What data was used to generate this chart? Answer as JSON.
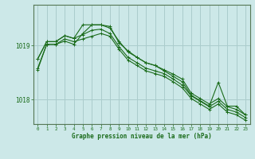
{
  "background_color": "#cce8e8",
  "grid_color": "#aacccc",
  "line_color": "#1a6b1a",
  "marker_color": "#1a6b1a",
  "xlabel": "Graphe pression niveau de la mer (hPa)",
  "yticks": [
    1018,
    1019
  ],
  "xticks": [
    0,
    1,
    2,
    3,
    4,
    5,
    6,
    7,
    8,
    9,
    10,
    11,
    12,
    13,
    14,
    15,
    16,
    17,
    18,
    19,
    20,
    21,
    22,
    23
  ],
  "xlim": [
    -0.5,
    23.5
  ],
  "ylim": [
    1017.55,
    1019.75
  ],
  "lines": [
    [
      1018.75,
      1019.07,
      1019.07,
      1019.18,
      1019.13,
      1019.38,
      1019.38,
      1019.38,
      1019.35,
      1019.05,
      1018.9,
      1018.78,
      1018.68,
      1018.63,
      1018.55,
      1018.47,
      1018.38,
      1018.12,
      1018.02,
      1017.92,
      1018.02,
      1017.87,
      1017.82,
      1017.72
    ],
    [
      1018.75,
      1019.07,
      1019.07,
      1019.18,
      1019.13,
      1019.2,
      1019.28,
      1019.3,
      1019.22,
      1018.98,
      1018.78,
      1018.68,
      1018.58,
      1018.53,
      1018.48,
      1018.38,
      1018.27,
      1018.07,
      1017.97,
      1017.87,
      1017.97,
      1017.82,
      1017.77,
      1017.67
    ],
    [
      1018.58,
      1019.02,
      1019.02,
      1019.08,
      1019.02,
      1019.22,
      1019.38,
      1019.38,
      1019.32,
      1019.08,
      1018.88,
      1018.78,
      1018.68,
      1018.63,
      1018.53,
      1018.43,
      1018.33,
      1018.08,
      1017.98,
      1017.88,
      1018.32,
      1017.88,
      1017.88,
      1017.72
    ],
    [
      1018.55,
      1019.02,
      1019.02,
      1019.12,
      1019.07,
      1019.12,
      1019.17,
      1019.22,
      1019.17,
      1018.93,
      1018.73,
      1018.63,
      1018.53,
      1018.48,
      1018.43,
      1018.33,
      1018.22,
      1018.02,
      1017.92,
      1017.82,
      1017.92,
      1017.77,
      1017.72,
      1017.62
    ]
  ]
}
